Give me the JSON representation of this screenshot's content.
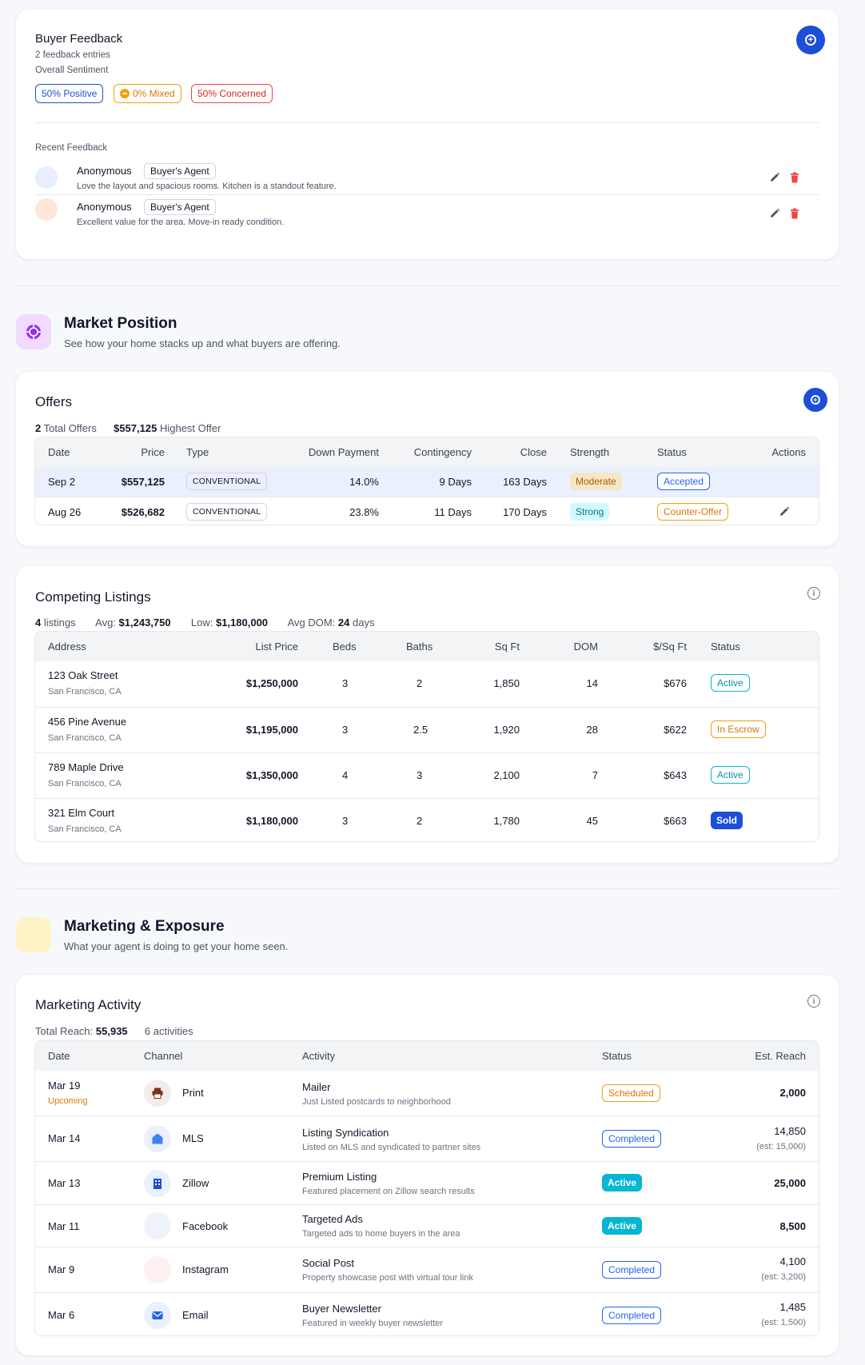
{
  "feedback": {
    "title": "Buyer Feedback",
    "entries_count": "2 feedback entries",
    "sentiment_label": "Overall Sentiment",
    "sentiments": [
      {
        "label": "50% Positive",
        "color": "#1d4ed8"
      },
      {
        "label": "0% Mixed",
        "color": "#f59e0b"
      },
      {
        "label": "50% Concerned",
        "color": "#ef4444"
      }
    ],
    "recent_label": "Recent Feedback",
    "items": [
      {
        "name": "Anonymous",
        "role": "Buyer's Agent",
        "text": "Love the layout and spacious rooms. Kitchen is a standout feature.",
        "avatar_color": "#e8eeff"
      },
      {
        "name": "Anonymous",
        "role": "Buyer's Agent",
        "text": "Excellent value for the area. Move-in ready condition.",
        "avatar_color": "#ffe6d8"
      }
    ]
  },
  "market": {
    "title": "Market Position",
    "subtitle": "See how your home stacks up and what buyers are offering."
  },
  "offers": {
    "title": "Offers",
    "total_count": "2",
    "total_label": "Total Offers",
    "highest_value": "$557,125",
    "highest_label": "Highest Offer",
    "headers": [
      "Date",
      "Price",
      "Type",
      "Down Payment",
      "Contingency",
      "Close",
      "Strength",
      "Status",
      "Actions"
    ],
    "rows": [
      {
        "date": "Sep 2",
        "price": "$557,125",
        "type": "CONVENTIONAL",
        "down": "14.0%",
        "contingency": "9 Days",
        "close": "163 Days",
        "strength": "Moderate",
        "status": "Accepted"
      },
      {
        "date": "Aug 26",
        "price": "$526,682",
        "type": "CONVENTIONAL",
        "down": "23.8%",
        "contingency": "11 Days",
        "close": "170 Days",
        "strength": "Strong",
        "status": "Counter-Offer"
      }
    ]
  },
  "competing": {
    "title": "Competing Listings",
    "listings_count": "4",
    "listings_label": "listings",
    "avg_label": "Avg:",
    "avg_value": "$1,243,750",
    "low_label": "Low:",
    "low_value": "$1,180,000",
    "dom_label": "Avg DOM:",
    "dom_value": "24",
    "dom_unit": "days",
    "headers": [
      "Address",
      "List Price",
      "Beds",
      "Baths",
      "Sq Ft",
      "DOM",
      "$/Sq Ft",
      "Status"
    ],
    "rows": [
      {
        "address": "123 Oak Street",
        "city": "San Francisco, CA",
        "price": "$1,250,000",
        "beds": "3",
        "baths": "2",
        "sqft": "1,850",
        "dom": "14",
        "ppsf": "$676",
        "status": "Active"
      },
      {
        "address": "456 Pine Avenue",
        "city": "San Francisco, CA",
        "price": "$1,195,000",
        "beds": "3",
        "baths": "2.5",
        "sqft": "1,920",
        "dom": "28",
        "ppsf": "$622",
        "status": "In Escrow"
      },
      {
        "address": "789 Maple Drive",
        "city": "San Francisco, CA",
        "price": "$1,350,000",
        "beds": "4",
        "baths": "3",
        "sqft": "2,100",
        "dom": "7",
        "ppsf": "$643",
        "status": "Active"
      },
      {
        "address": "321 Elm Court",
        "city": "San Francisco, CA",
        "price": "$1,180,000",
        "beds": "3",
        "baths": "2",
        "sqft": "1,780",
        "dom": "45",
        "ppsf": "$663",
        "status": "Sold"
      }
    ]
  },
  "marketing_section": {
    "title": "Marketing & Exposure",
    "subtitle": "What your agent is doing to get your home seen."
  },
  "marketing": {
    "title": "Marketing Activity",
    "reach_label": "Total Reach:",
    "reach_value": "55,935",
    "activities": "6 activities",
    "headers": [
      "Date",
      "Channel",
      "Activity",
      "Status",
      "Est. Reach"
    ],
    "rows": [
      {
        "date": "Mar 19",
        "date_note": "Upcoming",
        "channel": "Print",
        "icon": "printer-icon",
        "activity": "Mailer",
        "desc": "Just Listed postcards to neighborhood",
        "status": "Scheduled",
        "reach": "2,000",
        "reach_est": ""
      },
      {
        "date": "Mar 14",
        "date_note": "",
        "channel": "MLS",
        "icon": "house-icon",
        "activity": "Listing Syndication",
        "desc": "Listed on MLS and syndicated to partner sites",
        "status": "Completed",
        "reach": "14,850",
        "reach_est": "(est: 15,000)"
      },
      {
        "date": "Mar 13",
        "date_note": "",
        "channel": "Zillow",
        "icon": "building-icon",
        "activity": "Premium Listing",
        "desc": "Featured placement on Zillow search results",
        "status": "Active",
        "reach": "25,000",
        "reach_est": ""
      },
      {
        "date": "Mar 11",
        "date_note": "",
        "channel": "Facebook",
        "icon": "facebook-icon",
        "activity": "Targeted Ads",
        "desc": "Targeted ads to home buyers in the area",
        "status": "Active",
        "reach": "8,500",
        "reach_est": ""
      },
      {
        "date": "Mar 9",
        "date_note": "",
        "channel": "Instagram",
        "icon": "instagram-icon",
        "activity": "Social Post",
        "desc": "Property showcase post with virtual tour link",
        "status": "Completed",
        "reach": "4,100",
        "reach_est": "(est: 3,200)"
      },
      {
        "date": "Mar 6",
        "date_note": "",
        "channel": "Email",
        "icon": "envelope-icon",
        "activity": "Buyer Newsletter",
        "desc": "Featured in weekly buyer newsletter",
        "status": "Completed",
        "reach": "1,485",
        "reach_est": "(est: 1,500)"
      }
    ]
  }
}
